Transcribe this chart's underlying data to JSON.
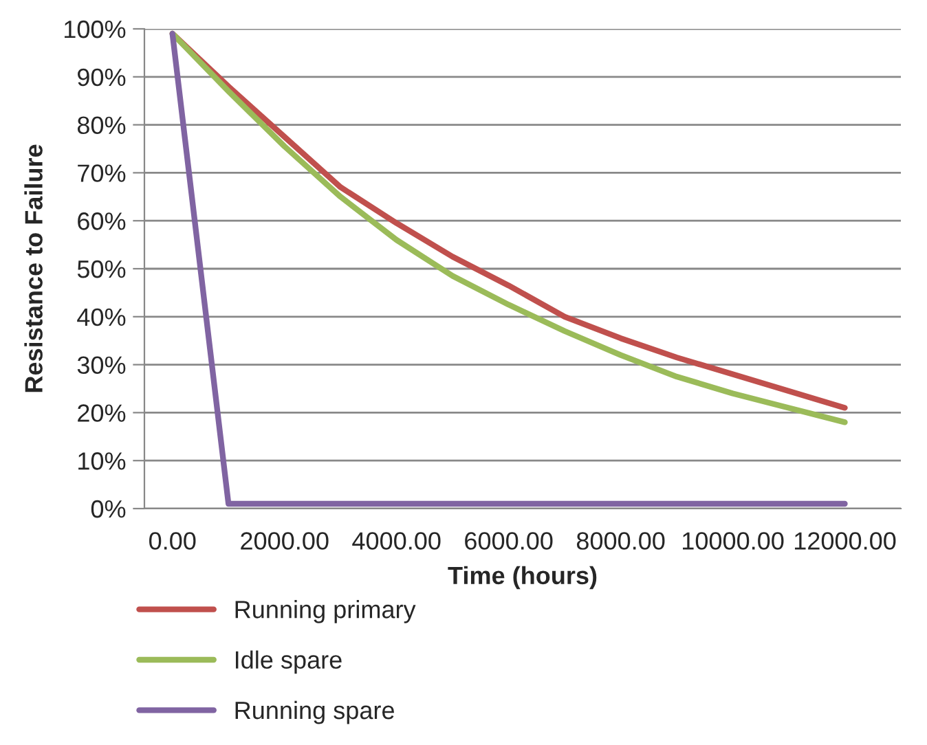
{
  "chart_data": {
    "type": "line",
    "xlabel": "Time (hours)",
    "ylabel": "Resistance to Failure",
    "categories": [
      "0.00",
      null,
      "2000.00",
      null,
      "4000.00",
      null,
      "6000.00",
      null,
      "8000.00",
      null,
      "10000.00",
      null,
      "12000.00"
    ],
    "series": [
      {
        "name": "Running primary",
        "color": "#c0504d",
        "values": [
          99,
          88,
          77.5,
          67,
          59.5,
          52.5,
          46.5,
          40,
          35.5,
          31.5,
          28,
          24.5,
          21
        ]
      },
      {
        "name": "Idle spare",
        "color": "#9bbb59",
        "values": [
          99,
          87,
          75.5,
          65,
          56,
          48.5,
          42.5,
          37,
          32,
          27.5,
          24,
          21,
          18
        ]
      },
      {
        "name": "Running spare",
        "color": "#8064a2",
        "values": [
          99,
          1,
          1,
          1,
          1,
          1,
          1,
          1,
          1,
          1,
          1,
          1,
          1
        ]
      }
    ],
    "ylim": [
      0,
      100
    ],
    "yticks": [
      {
        "value": 0,
        "label": "0%"
      },
      {
        "value": 10,
        "label": "10%"
      },
      {
        "value": 20,
        "label": "20%"
      },
      {
        "value": 30,
        "label": "30%"
      },
      {
        "value": 40,
        "label": "40%"
      },
      {
        "value": 50,
        "label": "50%"
      },
      {
        "value": 60,
        "label": "60%"
      },
      {
        "value": 70,
        "label": "70%"
      },
      {
        "value": 80,
        "label": "80%"
      },
      {
        "value": 90,
        "label": "90%"
      },
      {
        "value": 100,
        "label": "100%"
      }
    ],
    "grid": "y",
    "legend": "bottom left",
    "marker": "none",
    "line_style": "solid"
  }
}
